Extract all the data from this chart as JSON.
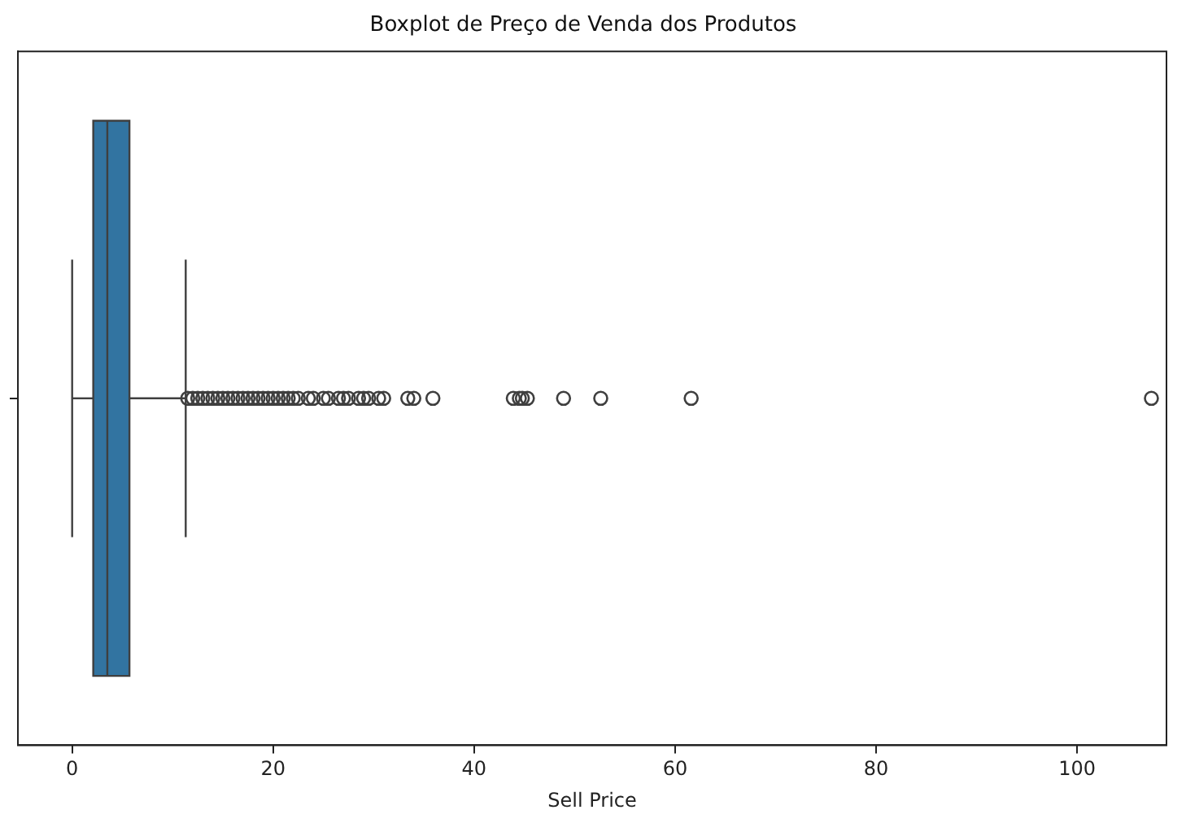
{
  "chart_data": {
    "type": "box",
    "title": "Boxplot de Preço de Venda dos Produtos",
    "xlabel": "Sell Price",
    "orientation": "horizontal",
    "categories": [
      null
    ],
    "color": "#3274a1",
    "boxes": [
      {
        "low": 0,
        "q1": 2.1,
        "median": 3.5,
        "q3": 5.7,
        "high": 11.3,
        "outliers": [
          11.5,
          12,
          12.5,
          13,
          13.5,
          14,
          14.5,
          15,
          15.5,
          16,
          16.5,
          17,
          17.5,
          18,
          18.5,
          19,
          19.5,
          20,
          20.5,
          21,
          21.5,
          22,
          22.5,
          23.5,
          24,
          25,
          25.5,
          26.5,
          27,
          27.5,
          28.5,
          29,
          29.5,
          30.5,
          31,
          33.4,
          34,
          35.9,
          43.9,
          44.5,
          44.8,
          45.3,
          48.9,
          52.6,
          61.6,
          107.4
        ]
      }
    ],
    "xlim": [
      -5.4,
      108.9
    ],
    "xticks": [
      0,
      20,
      40,
      60,
      80,
      100
    ]
  }
}
